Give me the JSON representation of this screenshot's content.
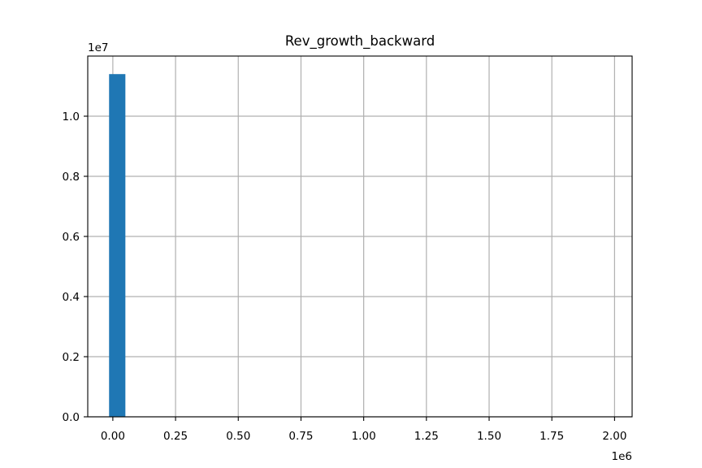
{
  "chart_data": {
    "type": "bar",
    "title": "Rev_growth_backward",
    "xlabel": "",
    "ylabel": "",
    "x_offset_label": "1e6",
    "y_offset_label": "1e7",
    "xlim": [
      -0.1,
      2.07
    ],
    "ylim": [
      0,
      1.2
    ],
    "x_ticks": [
      0.0,
      0.25,
      0.5,
      0.75,
      1.0,
      1.25,
      1.5,
      1.75,
      2.0
    ],
    "x_tick_labels": [
      "0.00",
      "0.25",
      "0.50",
      "0.75",
      "1.00",
      "1.25",
      "1.50",
      "1.75",
      "2.00"
    ],
    "y_ticks": [
      0.0,
      0.2,
      0.4,
      0.6,
      0.8,
      1.0
    ],
    "y_tick_labels": [
      "0.0",
      "0.2",
      "0.4",
      "0.6",
      "0.8",
      "1.0"
    ],
    "grid": true,
    "bins": [
      {
        "x_start": -0.015,
        "x_end": 0.05,
        "count": 1.14
      }
    ],
    "bar_color": "#1f77b4"
  }
}
